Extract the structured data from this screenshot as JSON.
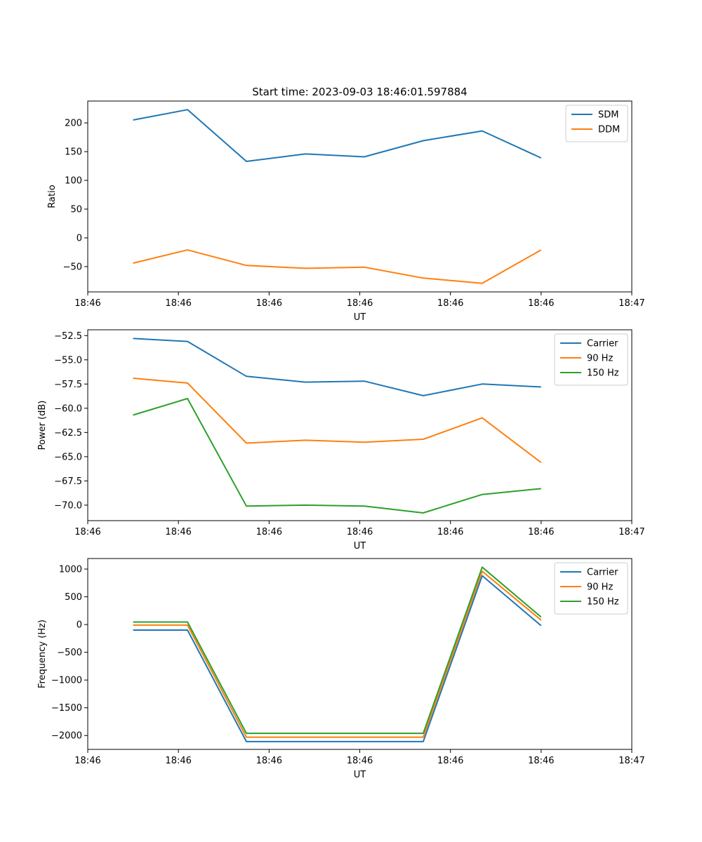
{
  "figure_title": "Start time: 2023-09-03 18:46:01.597884",
  "colors": {
    "blue": "#1f77b4",
    "orange": "#ff7f0e",
    "green": "#2ca02c"
  },
  "chart_data": [
    {
      "type": "line",
      "title": "Start time: 2023-09-03 18:46:01.597884",
      "xlabel": "UT",
      "ylabel": "Ratio",
      "xlim": [
        0,
        6.0
      ],
      "x": [
        0.5,
        1.1,
        1.75,
        2.4,
        3.05,
        3.7,
        4.35,
        5.0
      ],
      "xticks": [
        0,
        1,
        2,
        3,
        4,
        5,
        6
      ],
      "xtick_labels": [
        "18:46",
        "18:46",
        "18:46",
        "18:46",
        "18:46",
        "18:46",
        "18:47"
      ],
      "ylim": [
        -94,
        238
      ],
      "yticks": [
        200,
        150,
        100,
        50,
        0,
        -50
      ],
      "ytick_labels": [
        "200",
        "150",
        "100",
        "50",
        "0",
        "−50"
      ],
      "legend_position": "top-right",
      "series": [
        {
          "name": "SDM",
          "color": "#1f77b4",
          "values": [
            205,
            223,
            133,
            146,
            141,
            169,
            186,
            139
          ]
        },
        {
          "name": "DDM",
          "color": "#ff7f0e",
          "values": [
            -44,
            -21,
            -48,
            -53,
            -51,
            -70,
            -79,
            -21
          ]
        }
      ]
    },
    {
      "type": "line",
      "title": "",
      "xlabel": "UT",
      "ylabel": "Power (dB)",
      "xlim": [
        0,
        6.0
      ],
      "x": [
        0.5,
        1.1,
        1.75,
        2.4,
        3.05,
        3.7,
        4.35,
        5.0
      ],
      "xticks": [
        0,
        1,
        2,
        3,
        4,
        5,
        6
      ],
      "xtick_labels": [
        "18:46",
        "18:46",
        "18:46",
        "18:46",
        "18:46",
        "18:46",
        "18:47"
      ],
      "ylim": [
        -71.6,
        -51.9
      ],
      "yticks": [
        -52.5,
        -55.0,
        -57.5,
        -60.0,
        -62.5,
        -65.0,
        -67.5,
        -70.0
      ],
      "ytick_labels": [
        "−52.5",
        "−55.0",
        "−57.5",
        "−60.0",
        "−62.5",
        "−65.0",
        "−67.5",
        "−70.0"
      ],
      "legend_position": "top-right",
      "series": [
        {
          "name": "Carrier",
          "color": "#1f77b4",
          "values": [
            -52.8,
            -53.1,
            -56.7,
            -57.3,
            -57.2,
            -58.7,
            -57.5,
            -57.8
          ]
        },
        {
          "name": "90 Hz",
          "color": "#ff7f0e",
          "values": [
            -56.9,
            -57.4,
            -63.6,
            -63.3,
            -63.5,
            -63.2,
            -61.0,
            -65.6
          ]
        },
        {
          "name": "150 Hz",
          "color": "#2ca02c",
          "values": [
            -60.7,
            -59.0,
            -70.1,
            -70.0,
            -70.1,
            -70.8,
            -68.9,
            -68.3
          ]
        }
      ]
    },
    {
      "type": "line",
      "title": "",
      "xlabel": "UT",
      "ylabel": "Frequency (Hz)",
      "xlim": [
        0,
        6.0
      ],
      "x": [
        0.5,
        1.1,
        1.75,
        2.4,
        3.05,
        3.7,
        4.35,
        5.0
      ],
      "xticks": [
        0,
        1,
        2,
        3,
        4,
        5,
        6
      ],
      "xtick_labels": [
        "18:46",
        "18:46",
        "18:46",
        "18:46",
        "18:46",
        "18:46",
        "18:47"
      ],
      "ylim": [
        -2250,
        1190
      ],
      "yticks": [
        1000,
        500,
        0,
        -500,
        -1000,
        -1500,
        -2000
      ],
      "ytick_labels": [
        "1000",
        "500",
        "0",
        "−500",
        "−1000",
        "−1500",
        "−2000"
      ],
      "legend_position": "top-right",
      "series": [
        {
          "name": "Carrier",
          "color": "#1f77b4",
          "values": [
            -100,
            -100,
            -2110,
            -2110,
            -2110,
            -2110,
            880,
            -20
          ]
        },
        {
          "name": "90 Hz",
          "color": "#ff7f0e",
          "values": [
            -10,
            -10,
            -2030,
            -2030,
            -2030,
            -2030,
            960,
            80
          ]
        },
        {
          "name": "150 Hz",
          "color": "#2ca02c",
          "values": [
            45,
            45,
            -1960,
            -1960,
            -1960,
            -1960,
            1035,
            135
          ]
        }
      ]
    }
  ]
}
